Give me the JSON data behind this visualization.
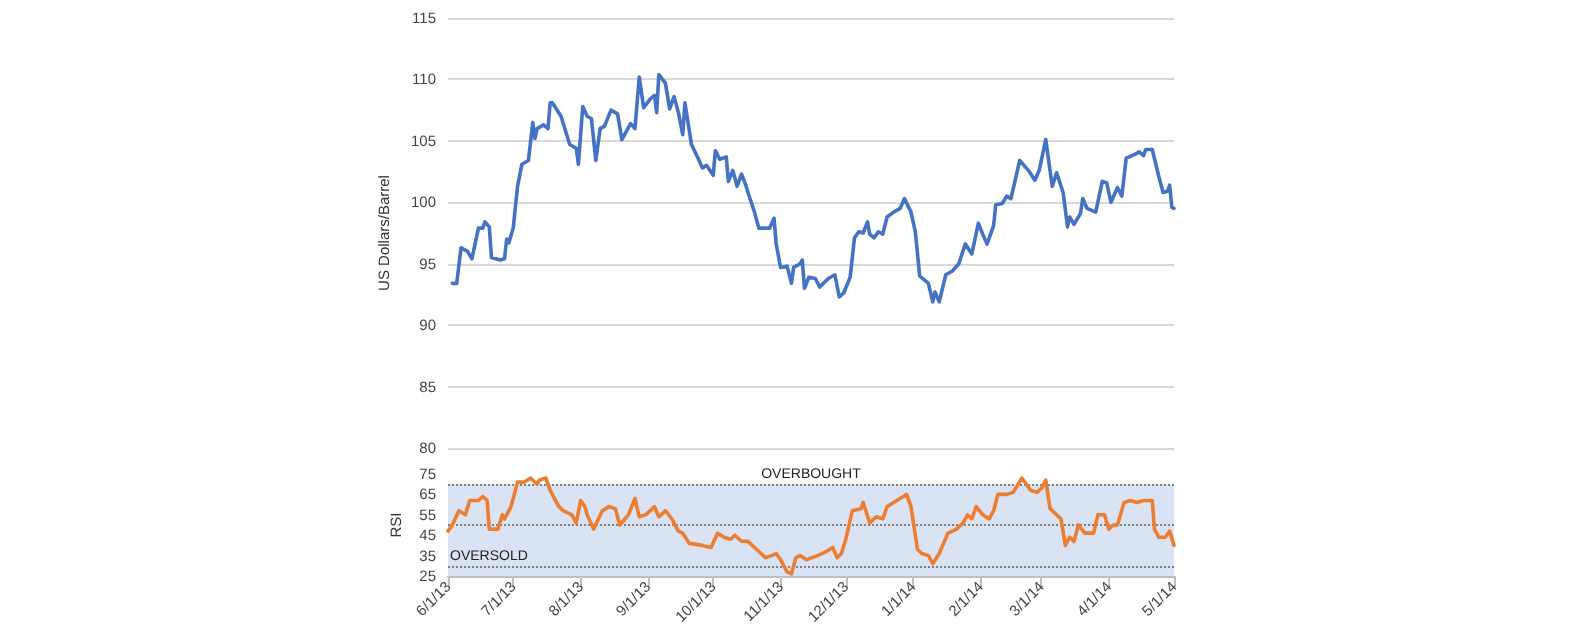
{
  "chart_data": [
    {
      "type": "line",
      "ylabel": "US Dollars/Barrel",
      "xlim": [
        "2013-06-01",
        "2014-05-01"
      ],
      "ylim": [
        80,
        115
      ],
      "yticks": [
        80,
        85,
        90,
        95,
        100,
        105,
        110,
        115
      ],
      "grid": "y",
      "tick_labels": "y",
      "marker": "none",
      "line_style": "solid",
      "series": [
        {
          "color": "#4472c4",
          "x": [
            "2013-06-03",
            "2013-06-05",
            "2013-06-07",
            "2013-06-10",
            "2013-06-12",
            "2013-06-15",
            "2013-06-17",
            "2013-06-18",
            "2013-06-20",
            "2013-06-21",
            "2013-06-25",
            "2013-06-27",
            "2013-06-28",
            "2013-06-29",
            "2013-07-01",
            "2013-07-03",
            "2013-07-05",
            "2013-07-08",
            "2013-07-10",
            "2013-07-11",
            "2013-07-12",
            "2013-07-15",
            "2013-07-17",
            "2013-07-18",
            "2013-07-19",
            "2013-07-23",
            "2013-07-27",
            "2013-07-30",
            "2013-07-31",
            "2013-08-02",
            "2013-08-04",
            "2013-08-06",
            "2013-08-08",
            "2013-08-10",
            "2013-08-12",
            "2013-08-15",
            "2013-08-18",
            "2013-08-20",
            "2013-08-24",
            "2013-08-26",
            "2013-08-28",
            "2013-08-30",
            "2013-09-02",
            "2013-09-04",
            "2013-09-05",
            "2013-09-06",
            "2013-09-09",
            "2013-09-11",
            "2013-09-13",
            "2013-09-15",
            "2013-09-17",
            "2013-09-18",
            "2013-09-21",
            "2013-09-24",
            "2013-09-26",
            "2013-09-28",
            "2013-10-01",
            "2013-10-02",
            "2013-10-04",
            "2013-10-07",
            "2013-10-08",
            "2013-10-10",
            "2013-10-12",
            "2013-10-14",
            "2013-10-16",
            "2013-10-17",
            "2013-10-20",
            "2013-10-22",
            "2013-10-27",
            "2013-10-29",
            "2013-10-30",
            "2013-11-01",
            "2013-11-04",
            "2013-11-06",
            "2013-11-07",
            "2013-11-10",
            "2013-11-11",
            "2013-11-12",
            "2013-11-14",
            "2013-11-17",
            "2013-11-19",
            "2013-11-23",
            "2013-11-26",
            "2013-11-28",
            "2013-11-30",
            "2013-12-03",
            "2013-12-05",
            "2013-12-07",
            "2013-12-09",
            "2013-12-11",
            "2013-12-12",
            "2013-12-14",
            "2013-12-16",
            "2013-12-18",
            "2013-12-20",
            "2013-12-23",
            "2013-12-26",
            "2013-12-28",
            "2013-12-31",
            "2014-01-02",
            "2014-01-04",
            "2014-01-06",
            "2014-01-08",
            "2014-01-10",
            "2014-01-11",
            "2014-01-13",
            "2014-01-16",
            "2014-01-19",
            "2014-01-22",
            "2014-01-25",
            "2014-01-28",
            "2014-01-31",
            "2014-02-02",
            "2014-02-04",
            "2014-02-07",
            "2014-02-08",
            "2014-02-11",
            "2014-02-13",
            "2014-02-15",
            "2014-02-19",
            "2014-02-23",
            "2014-02-26",
            "2014-02-28",
            "2014-03-03",
            "2014-03-06",
            "2014-03-08",
            "2014-03-11",
            "2014-03-13",
            "2014-03-14",
            "2014-03-16",
            "2014-03-19",
            "2014-03-20",
            "2014-03-22",
            "2014-03-26",
            "2014-03-29",
            "2014-03-31",
            "2014-04-02",
            "2014-04-05",
            "2014-04-07",
            "2014-04-09",
            "2014-04-13",
            "2014-04-15",
            "2014-04-17",
            "2014-04-18",
            "2014-04-21",
            "2014-04-24",
            "2014-04-26",
            "2014-04-28",
            "2014-04-29",
            "2014-04-30",
            "2014-05-01"
          ],
          "values": [
            93.4,
            93.4,
            96.3,
            96.0,
            95.4,
            97.9,
            97.9,
            98.4,
            98.0,
            95.5,
            95.3,
            95.4,
            97.0,
            96.7,
            97.9,
            101.3,
            103.1,
            103.4,
            106.5,
            105.2,
            106.0,
            106.3,
            106.0,
            108.1,
            108.1,
            107.0,
            104.7,
            104.4,
            103.1,
            107.8,
            107.0,
            106.8,
            103.4,
            106.0,
            106.2,
            107.5,
            107.2,
            105.1,
            106.4,
            106.0,
            110.2,
            107.7,
            108.4,
            108.7,
            107.3,
            110.4,
            109.7,
            107.6,
            108.6,
            107.3,
            105.5,
            108.1,
            104.7,
            103.6,
            102.8,
            103.0,
            102.2,
            104.2,
            103.5,
            103.7,
            101.7,
            102.6,
            101.3,
            102.3,
            101.4,
            100.8,
            99.2,
            97.9,
            97.9,
            98.7,
            96.6,
            94.7,
            94.8,
            93.4,
            94.7,
            95.0,
            95.3,
            93.0,
            93.9,
            93.8,
            93.1,
            93.8,
            94.1,
            92.3,
            92.6,
            93.9,
            97.1,
            97.6,
            97.5,
            98.4,
            97.4,
            97.1,
            97.6,
            97.4,
            98.8,
            99.2,
            99.5,
            100.3,
            99.2,
            97.6,
            94.0,
            93.7,
            93.4,
            91.9,
            92.7,
            91.9,
            94.1,
            94.4,
            95.0,
            96.6,
            95.8,
            98.3,
            97.4,
            96.6,
            98.1,
            99.8,
            99.9,
            100.5,
            100.3,
            103.4,
            102.6,
            101.8,
            102.6,
            105.1,
            101.3,
            102.4,
            100.8,
            98.0,
            98.8,
            98.2,
            99.1,
            100.3,
            99.5,
            99.2,
            101.7,
            101.6,
            100.0,
            101.2,
            100.5,
            103.6,
            103.9,
            104.1,
            103.8,
            104.3,
            104.3,
            102.1,
            100.8,
            100.9,
            101.4,
            99.6,
            99.5
          ]
        }
      ]
    },
    {
      "type": "line",
      "ylabel": "RSI",
      "xlim": [
        "2013-06-01",
        "2014-05-01"
      ],
      "xticks": [
        {
          "value": "2013-06-01",
          "label": "6/1/13"
        },
        {
          "value": "2013-07-01",
          "label": "7/1/13"
        },
        {
          "value": "2013-08-01",
          "label": "8/1/13"
        },
        {
          "value": "2013-09-01",
          "label": "9/1/13"
        },
        {
          "value": "2013-10-01",
          "label": "10/1/13"
        },
        {
          "value": "2013-11-01",
          "label": "11/1/13"
        },
        {
          "value": "2013-12-01",
          "label": "12/1/13"
        },
        {
          "value": "2014-01-01",
          "label": "1/1/14"
        },
        {
          "value": "2014-02-01",
          "label": "2/1/14"
        },
        {
          "value": "2014-03-01",
          "label": "3/1/14"
        },
        {
          "value": "2014-04-01",
          "label": "4/1/14"
        },
        {
          "value": "2014-05-01",
          "label": "5/1/14"
        }
      ],
      "ylim": [
        25,
        75
      ],
      "yticks": [
        25,
        35,
        45,
        55,
        65,
        75
      ],
      "marker": "none",
      "line_style": "solid",
      "bands": [
        {
          "axis": "y",
          "from": 25,
          "to": 70,
          "color": "#dae3f3"
        }
      ],
      "ref_lines": [
        {
          "axis": "y",
          "value": 70,
          "label": "OVERBOUGHT",
          "color": "#808080",
          "line_style": "dotted"
        },
        {
          "axis": "y",
          "value": 50,
          "color": "#808080",
          "line_style": "dotted"
        },
        {
          "axis": "y",
          "value": 30,
          "label": "OVERSOLD",
          "color": "#808080",
          "line_style": "dotted"
        }
      ],
      "series": [
        {
          "color": "#ed7d31",
          "x": [
            "2013-06-01",
            "2013-06-03",
            "2013-06-06",
            "2013-06-09",
            "2013-06-11",
            "2013-06-15",
            "2013-06-17",
            "2013-06-19",
            "2013-06-20",
            "2013-06-24",
            "2013-06-26",
            "2013-06-27",
            "2013-06-30",
            "2013-07-03",
            "2013-07-06",
            "2013-07-09",
            "2013-07-12",
            "2013-07-13",
            "2013-07-16",
            "2013-07-18",
            "2013-07-22",
            "2013-07-24",
            "2013-07-28",
            "2013-07-30",
            "2013-08-01",
            "2013-08-03",
            "2013-08-04",
            "2013-08-07",
            "2013-08-11",
            "2013-08-14",
            "2013-08-17",
            "2013-08-19",
            "2013-08-23",
            "2013-08-26",
            "2013-08-28",
            "2013-08-31",
            "2013-09-04",
            "2013-09-06",
            "2013-09-09",
            "2013-09-12",
            "2013-09-15",
            "2013-09-17",
            "2013-09-20",
            "2013-09-26",
            "2013-09-30",
            "2013-10-03",
            "2013-10-06",
            "2013-10-09",
            "2013-10-11",
            "2013-10-14",
            "2013-10-17",
            "2013-10-22",
            "2013-10-25",
            "2013-10-28",
            "2013-10-30",
            "2013-11-01",
            "2013-11-04",
            "2013-11-06",
            "2013-11-08",
            "2013-11-10",
            "2013-11-13",
            "2013-11-18",
            "2013-11-22",
            "2013-11-25",
            "2013-11-27",
            "2013-11-29",
            "2013-12-01",
            "2013-12-04",
            "2013-12-08",
            "2013-12-09",
            "2013-12-12",
            "2013-12-15",
            "2013-12-18",
            "2013-12-20",
            "2013-12-23",
            "2013-12-26",
            "2013-12-29",
            "2013-12-31",
            "2014-01-03",
            "2014-01-05",
            "2014-01-08",
            "2014-01-10",
            "2014-01-13",
            "2014-01-17",
            "2014-01-21",
            "2014-01-24",
            "2014-01-26",
            "2014-01-28",
            "2014-01-30",
            "2014-02-02",
            "2014-02-05",
            "2014-02-07",
            "2014-02-09",
            "2014-02-13",
            "2014-02-16",
            "2014-02-20",
            "2014-02-24",
            "2014-02-27",
            "2014-03-01",
            "2014-03-03",
            "2014-03-05",
            "2014-03-08",
            "2014-03-10",
            "2014-03-12",
            "2014-03-14",
            "2014-03-16",
            "2014-03-18",
            "2014-03-21",
            "2014-03-25",
            "2014-03-27",
            "2014-03-30",
            "2014-04-01",
            "2014-04-03",
            "2014-04-05",
            "2014-04-08",
            "2014-04-11",
            "2014-04-14",
            "2014-04-17",
            "2014-04-21",
            "2014-04-22",
            "2014-04-24",
            "2014-04-27",
            "2014-04-29",
            "2014-05-01"
          ],
          "values": [
            47,
            50,
            57,
            55,
            62,
            62,
            64,
            62,
            48,
            48,
            55,
            53,
            59,
            71,
            71,
            73,
            70,
            72,
            73,
            67,
            59,
            57,
            55,
            51,
            62,
            59,
            55,
            48,
            57,
            59,
            58,
            50,
            55,
            63,
            54,
            55,
            59,
            54,
            57,
            53,
            47,
            46,
            41,
            40,
            39,
            46,
            44,
            43,
            45,
            42,
            42,
            37,
            34,
            35,
            36,
            33,
            27,
            26,
            34,
            35,
            33,
            35,
            37,
            39,
            34,
            36,
            43,
            57,
            58,
            61,
            51,
            54,
            53,
            59,
            61,
            63,
            65,
            59,
            38,
            36,
            35,
            31,
            36,
            46,
            48,
            51,
            55,
            53,
            59,
            55,
            53,
            57,
            65,
            65,
            66,
            73,
            67,
            66,
            68,
            72,
            58,
            55,
            53,
            40,
            44,
            42,
            50,
            46,
            46,
            55,
            55,
            48,
            50,
            50,
            61,
            62,
            61,
            62,
            62,
            48,
            44,
            44,
            47,
            40
          ]
        }
      ]
    }
  ]
}
